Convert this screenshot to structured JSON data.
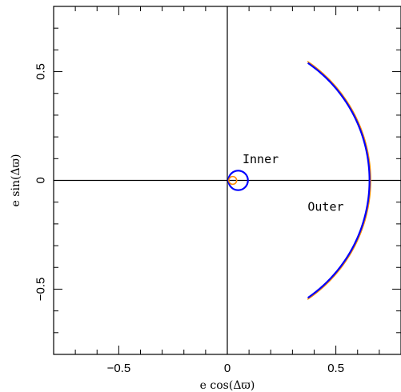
{
  "chart_data": {
    "type": "line",
    "title": "",
    "xlabel": "e cos(Δϖ)",
    "ylabel": "e sin(Δϖ)",
    "xlim": [
      -0.8,
      0.8
    ],
    "ylim": [
      -0.8,
      0.8
    ],
    "xticks": [
      -0.5,
      0,
      0.5
    ],
    "yticks": [
      -0.5,
      0,
      0.5
    ],
    "x_tick_labels": [
      "−0.5",
      "0",
      "0.5"
    ],
    "y_tick_labels": [
      "−0.5",
      "0",
      "0.5"
    ],
    "grid": false,
    "reference_lines": {
      "x": 0,
      "y": 0
    },
    "annotations": [
      {
        "text": "Inner",
        "x": 0.07,
        "y": 0.08
      },
      {
        "text": "Outer",
        "x": 0.37,
        "y": -0.14
      }
    ],
    "series": [
      {
        "label": "Inner",
        "color": "#0000ff",
        "kind": "circle",
        "center": [
          0.05,
          0.0
        ],
        "radius": 0.045
      },
      {
        "label": "Inner",
        "color": "#ff8c00",
        "kind": "circle",
        "center": [
          0.025,
          0.0
        ],
        "radius": 0.018
      },
      {
        "label": "Outer",
        "color": "#ff8c00",
        "kind": "circle-arc",
        "center": [
          0.0,
          0.0
        ],
        "radius": 0.66,
        "angle_range_deg": [
          -56,
          56
        ]
      },
      {
        "label": "Outer",
        "color": "#0000ff",
        "kind": "circle-arc",
        "center": [
          0.0,
          0.0
        ],
        "radius": 0.655,
        "angle_range_deg": [
          -55.5,
          55.5
        ]
      }
    ]
  }
}
